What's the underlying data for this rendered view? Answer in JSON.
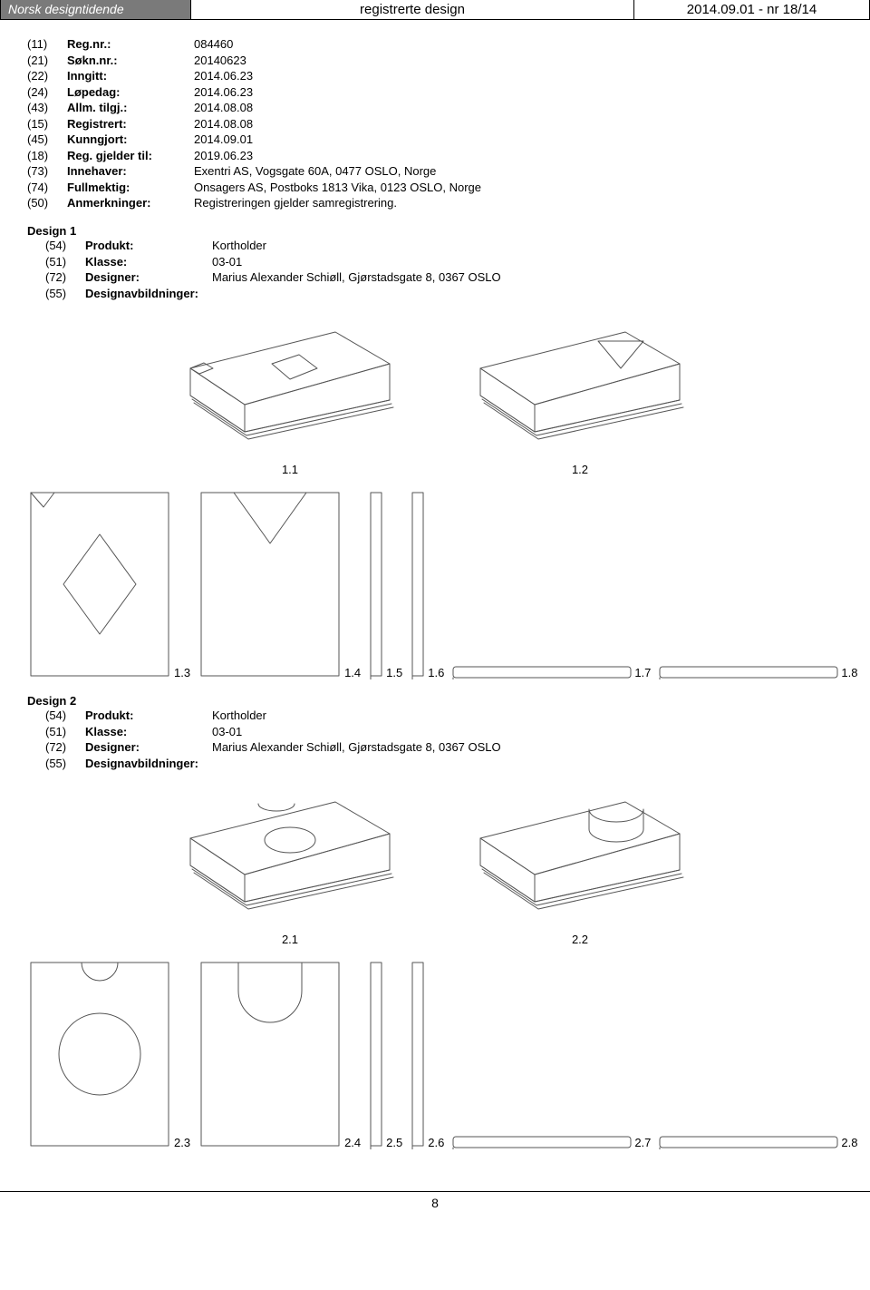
{
  "header": {
    "left": "Norsk designtidende",
    "center": "registrerte design",
    "right": "2014.09.01 - nr 18/14"
  },
  "meta": [
    {
      "code": "(11)",
      "label": "Reg.nr.:",
      "value": "084460"
    },
    {
      "code": "(21)",
      "label": "Søkn.nr.:",
      "value": "20140623"
    },
    {
      "code": "(22)",
      "label": "Inngitt:",
      "value": "2014.06.23"
    },
    {
      "code": "(24)",
      "label": "Løpedag:",
      "value": "2014.06.23"
    },
    {
      "code": "(43)",
      "label": "Allm. tilgj.:",
      "value": "2014.08.08"
    },
    {
      "code": "(15)",
      "label": "Registrert:",
      "value": "2014.08.08"
    },
    {
      "code": "(45)",
      "label": "Kunngjort:",
      "value": "2014.09.01"
    },
    {
      "code": "(18)",
      "label": "Reg. gjelder til:",
      "value": "2019.06.23"
    },
    {
      "code": "(73)",
      "label": "Innehaver:",
      "value": "Exentri AS, Vogsgate 60A, 0477 OSLO, Norge"
    },
    {
      "code": "(74)",
      "label": "Fullmektig:",
      "value": "Onsagers AS, Postboks 1813 Vika, 0123 OSLO, Norge"
    },
    {
      "code": "(50)",
      "label": "Anmerkninger:",
      "value": "Registreringen gjelder samregistrering."
    }
  ],
  "designs": [
    {
      "title": "Design 1",
      "rows": [
        {
          "code": "(54)",
          "label": "Produkt:",
          "value": "Kortholder"
        },
        {
          "code": "(51)",
          "label": "Klasse:",
          "value": "03-01"
        },
        {
          "code": "(72)",
          "label": "Designer:",
          "value": "Marius Alexander Schiøll, Gjørstadsgate 8, 0367 OSLO"
        },
        {
          "code": "(55)",
          "label": "Designavbildninger:",
          "value": ""
        }
      ],
      "captions": {
        "r1a": "1.1",
        "r1b": "1.2",
        "r2a": "1.3",
        "r2b": "1.4",
        "r2c": "1.5",
        "r2d": "1.6",
        "r2e": "1.7",
        "r2f": "1.8"
      }
    },
    {
      "title": "Design 2",
      "rows": [
        {
          "code": "(54)",
          "label": "Produkt:",
          "value": "Kortholder"
        },
        {
          "code": "(51)",
          "label": "Klasse:",
          "value": "03-01"
        },
        {
          "code": "(72)",
          "label": "Designer:",
          "value": "Marius Alexander Schiøll, Gjørstadsgate 8, 0367 OSLO"
        },
        {
          "code": "(55)",
          "label": "Designavbildninger:",
          "value": ""
        }
      ],
      "captions": {
        "r1a": "2.1",
        "r1b": "2.2",
        "r2a": "2.3",
        "r2b": "2.4",
        "r2c": "2.5",
        "r2d": "2.6",
        "r2e": "2.7",
        "r2f": "2.8"
      }
    }
  ],
  "page_number": "8",
  "svg": {
    "stroke": "#555555",
    "stroke_width": 1,
    "fill": "none"
  }
}
